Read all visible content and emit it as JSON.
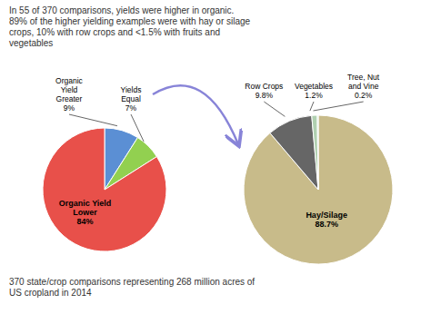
{
  "chart_data": [
    {
      "type": "pie",
      "title": "In 55 of 370 comparisons, yields were higher in organic.\n89% of the higher yielding examples were with hay or silage\ncrops, 10% with row crops and <1.5% with fruits and\nvegetables",
      "categories": [
        "Organic\nYield\nGreater",
        "Yields\nEqual",
        "Organic Yield\nLower"
      ],
      "values": [
        9,
        7,
        84
      ],
      "value_labels": [
        "9%",
        "7%",
        "84%"
      ],
      "colors": [
        "#5B8FD4",
        "#92D050",
        "#E8504A"
      ]
    },
    {
      "type": "pie",
      "categories": [
        "Hay/Silage",
        "Row Crops",
        "Vegetables",
        "Tree, Nut\nand Vine"
      ],
      "values": [
        88.7,
        9.8,
        1.2,
        0.2
      ],
      "value_labels": [
        "88.7%",
        "9.8%",
        "1.2%",
        "0.2%"
      ],
      "colors": [
        "#C8BB8A",
        "#666666",
        "#B0D0B0",
        "#C8E8C8"
      ],
      "annotations": [
        "370 state/crop comparisons representing 268 million acres of\nUS cropland in 2014"
      ]
    }
  ]
}
